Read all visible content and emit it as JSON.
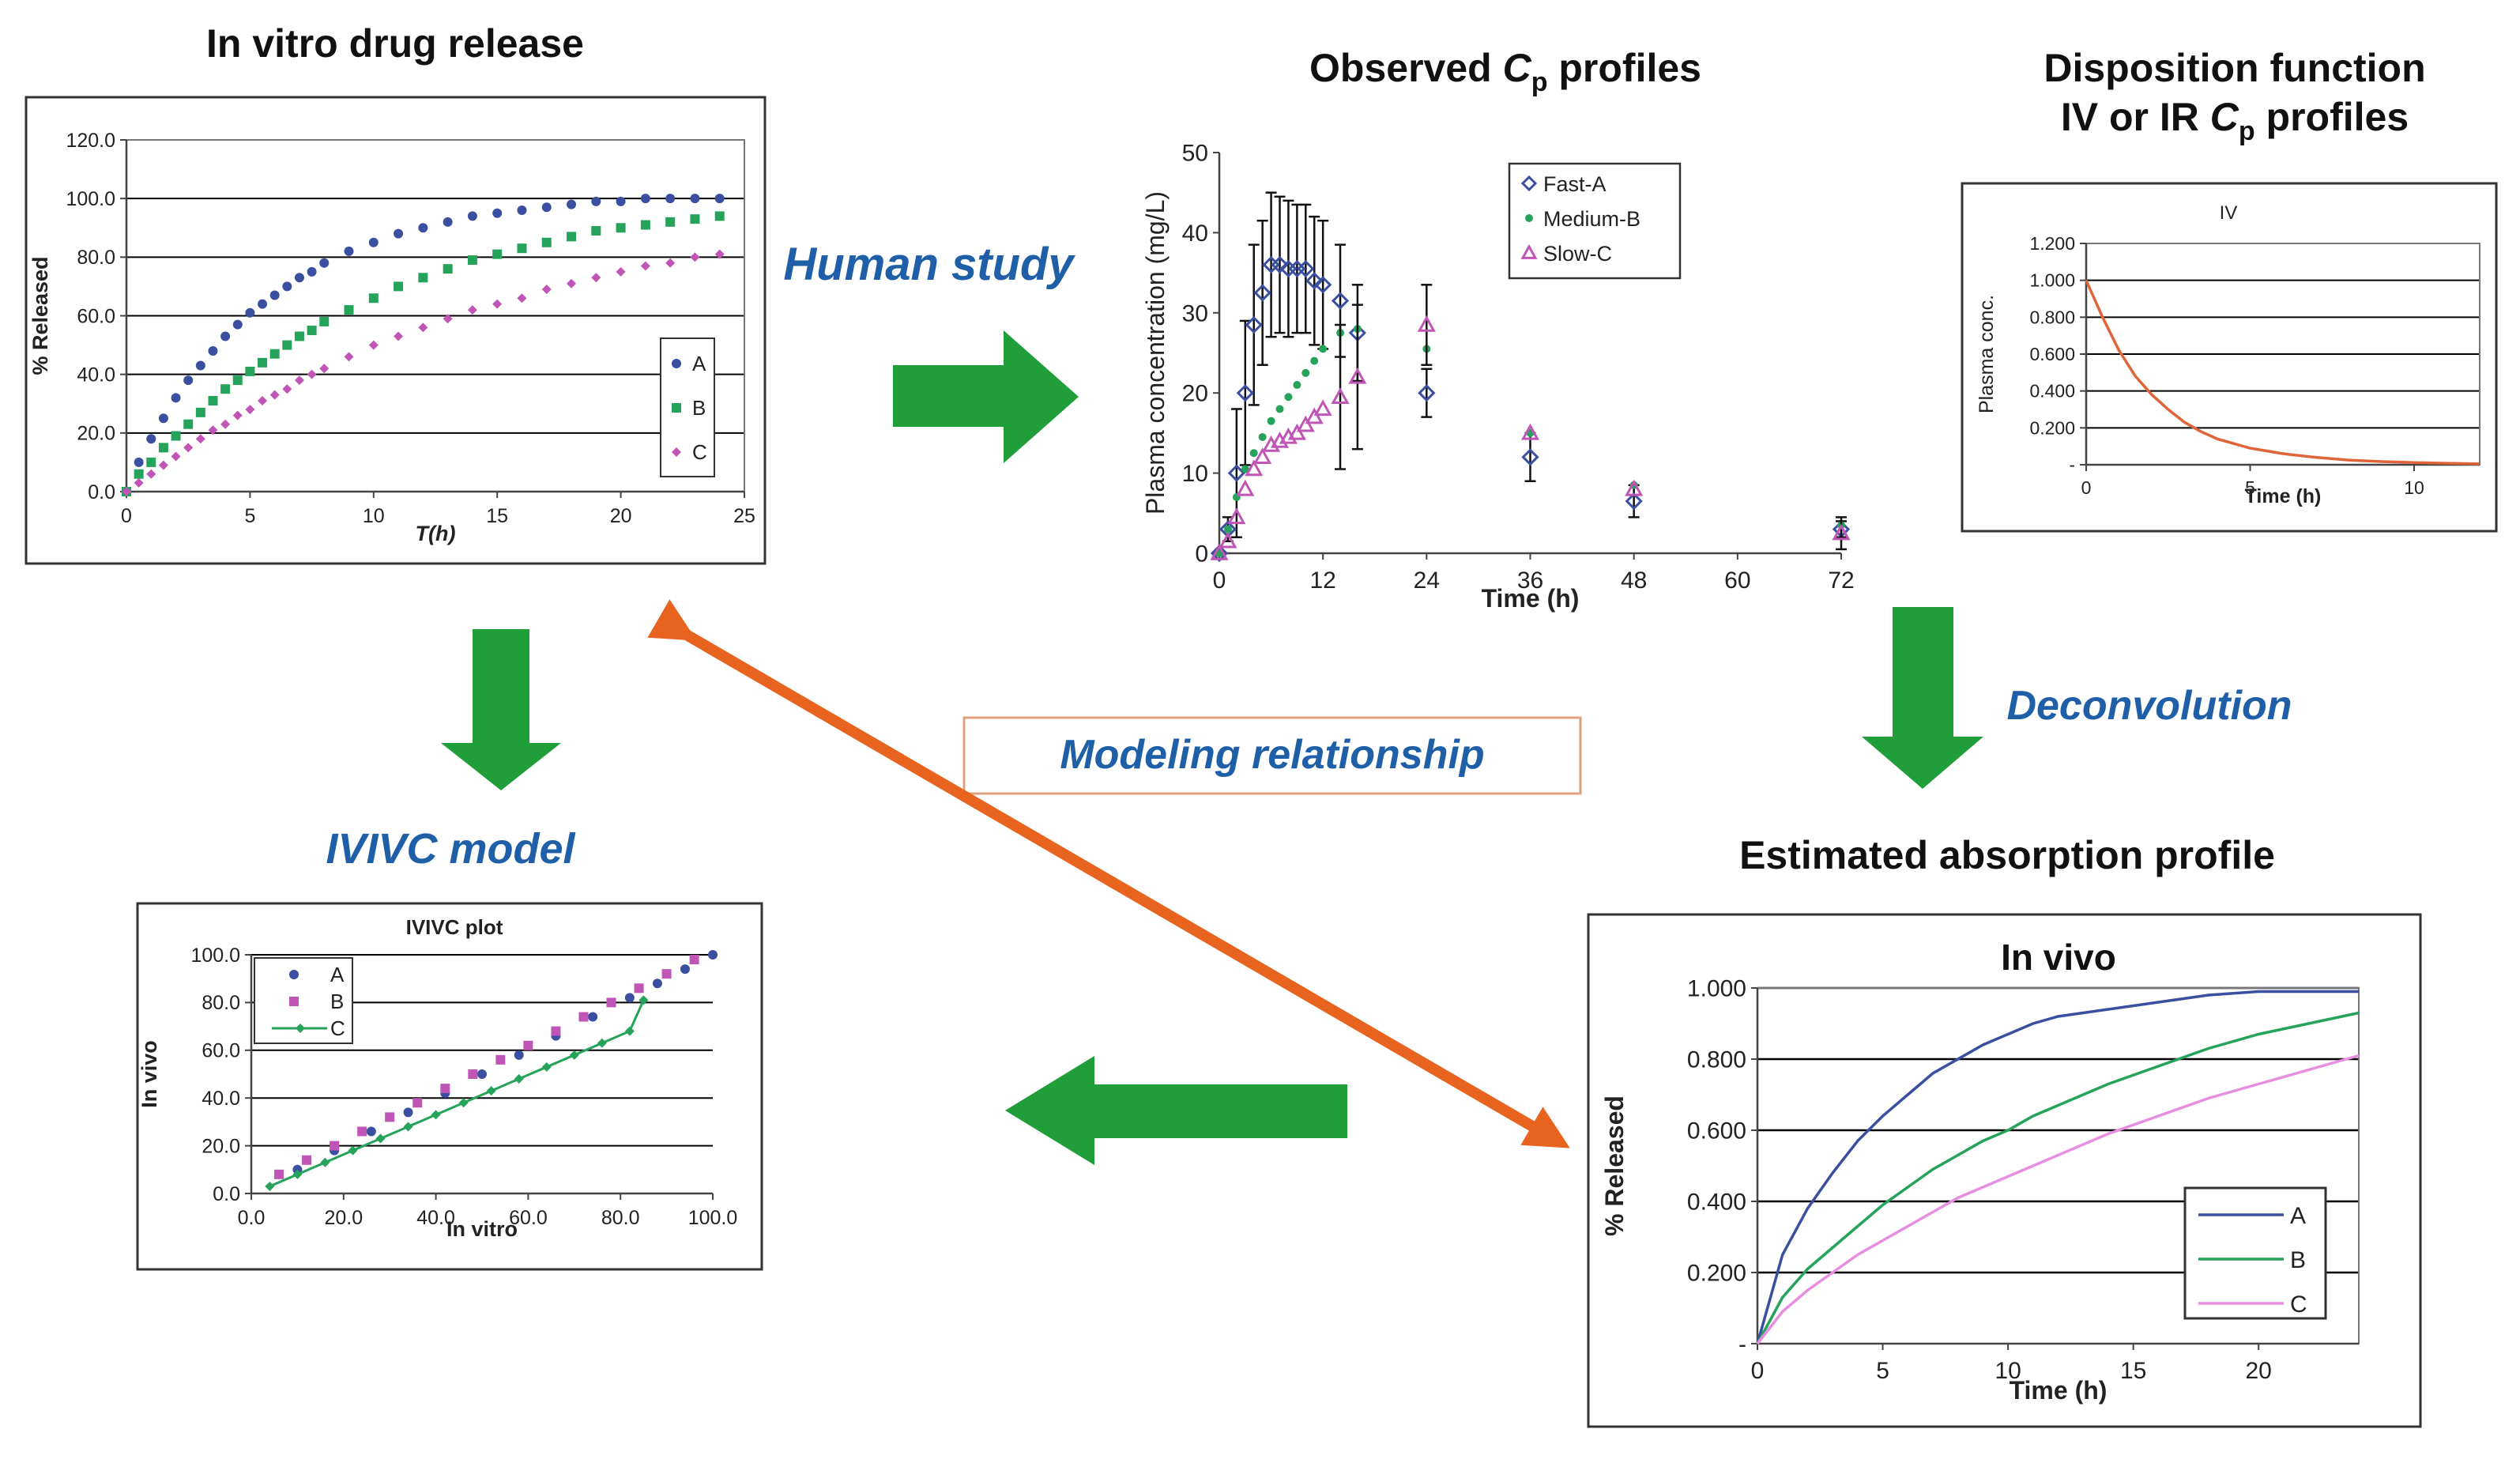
{
  "colors": {
    "seriesA": "#3a4fa0",
    "seriesB": "#25a35a",
    "seriesC": "#c055b5",
    "ivCurve": "#e0643a",
    "arrowGreen": "#1f9e3a",
    "arrowOrange": "#e8641e",
    "labelBlue": "#1e5fa8"
  },
  "labels": {
    "humanStudy": "Human study",
    "deconvolution": "Deconvolution",
    "modeling": "Modeling relationship",
    "ivivcModel": "IVIVC model"
  },
  "panels": {
    "invitro": {
      "title": "In vitro drug release"
    },
    "observed": {
      "title_pre": "Observed ",
      "title_c": "C",
      "title_sub": "p",
      "title_post": " profiles"
    },
    "disposition": {
      "title_line1": "Disposition function",
      "title_line2_pre": "IV or IR  ",
      "title_line2_c": "C",
      "title_line2_sub": "p",
      "title_line2_post": " profiles"
    },
    "absorption": {
      "title": "Estimated absorption profile"
    }
  },
  "chart_data": [
    {
      "id": "invitro",
      "type": "scatter",
      "title": "In vitro drug release",
      "xlabel": "T(h)",
      "ylabel": "% Released",
      "xlim": [
        0,
        25
      ],
      "ylim": [
        0,
        120
      ],
      "xticks": [
        0,
        5,
        10,
        15,
        20,
        25
      ],
      "xtick_labels": [
        "0",
        "5",
        "10",
        "15",
        "20",
        "25"
      ],
      "yticks": [
        0,
        20,
        40,
        60,
        80,
        100,
        120
      ],
      "ytick_labels": [
        "0.0",
        "20.0",
        "40.0",
        "60.0",
        "80.0",
        "100.0",
        "120.0"
      ],
      "legend": "right",
      "series": [
        {
          "name": "A",
          "color": "#3a4fa0",
          "x": [
            0,
            0.5,
            1,
            1.5,
            2,
            2.5,
            3,
            3.5,
            4,
            4.5,
            5,
            5.5,
            6,
            6.5,
            7,
            7.5,
            8,
            9,
            10,
            11,
            12,
            13,
            14,
            15,
            16,
            17,
            18,
            19,
            20,
            21,
            22,
            23,
            24
          ],
          "y": [
            0,
            10,
            18,
            25,
            32,
            38,
            43,
            48,
            53,
            57,
            61,
            64,
            67,
            70,
            73,
            75,
            78,
            82,
            85,
            88,
            90,
            92,
            94,
            95,
            96,
            97,
            98,
            99,
            99,
            100,
            100,
            100,
            100
          ]
        },
        {
          "name": "B",
          "color": "#25a35a",
          "x": [
            0,
            0.5,
            1,
            1.5,
            2,
            2.5,
            3,
            3.5,
            4,
            4.5,
            5,
            5.5,
            6,
            6.5,
            7,
            7.5,
            8,
            9,
            10,
            11,
            12,
            13,
            14,
            15,
            16,
            17,
            18,
            19,
            20,
            21,
            22,
            23,
            24
          ],
          "y": [
            0,
            6,
            10,
            15,
            19,
            23,
            27,
            31,
            35,
            38,
            41,
            44,
            47,
            50,
            53,
            55,
            58,
            62,
            66,
            70,
            73,
            76,
            79,
            81,
            83,
            85,
            87,
            89,
            90,
            91,
            92,
            93,
            94
          ]
        },
        {
          "name": "C",
          "color": "#c055b5",
          "x": [
            0,
            0.5,
            1,
            1.5,
            2,
            2.5,
            3,
            3.5,
            4,
            4.5,
            5,
            5.5,
            6,
            6.5,
            7,
            7.5,
            8,
            9,
            10,
            11,
            12,
            13,
            14,
            15,
            16,
            17,
            18,
            19,
            20,
            21,
            22,
            23,
            24
          ],
          "y": [
            0,
            3,
            6,
            9,
            12,
            15,
            18,
            21,
            23,
            26,
            28,
            31,
            33,
            35,
            38,
            40,
            42,
            46,
            50,
            53,
            56,
            59,
            62,
            64,
            66,
            69,
            71,
            73,
            75,
            77,
            78,
            80,
            81
          ]
        }
      ]
    },
    {
      "id": "observed",
      "type": "scatter",
      "xlabel": "Time (h)",
      "ylabel": "Plasma concentration (mg/L)",
      "xlim": [
        0,
        72
      ],
      "ylim": [
        0,
        50
      ],
      "xticks": [
        0,
        12,
        24,
        36,
        48,
        60,
        72
      ],
      "xtick_labels": [
        "0",
        "12",
        "24",
        "36",
        "48",
        "60",
        "72"
      ],
      "yticks": [
        0,
        10,
        20,
        30,
        40,
        50
      ],
      "ytick_labels": [
        "0",
        "10",
        "20",
        "30",
        "40",
        "50"
      ],
      "legend": "top-right",
      "series": [
        {
          "name": "Fast-A",
          "marker": "diamond",
          "color": "#3a4fa0",
          "x": [
            0,
            1,
            2,
            3,
            4,
            5,
            6,
            7,
            8,
            9,
            10,
            11,
            12,
            14,
            16,
            24,
            36,
            48,
            72
          ],
          "y": [
            0,
            3,
            10,
            20,
            28.5,
            32.5,
            36,
            36,
            35.5,
            35.5,
            35.5,
            34,
            33.5,
            31.5,
            27.5,
            20,
            12,
            6.5,
            3
          ],
          "err": [
            0,
            1.5,
            8,
            9,
            10,
            9,
            9,
            8.5,
            8.5,
            8,
            8,
            8,
            8,
            7,
            6,
            3,
            3,
            2,
            1
          ]
        },
        {
          "name": "Medium-B",
          "marker": "dot",
          "color": "#25a35a",
          "x": [
            0,
            1,
            2,
            3,
            4,
            5,
            6,
            7,
            8,
            9,
            10,
            11,
            12,
            14,
            16,
            24,
            36,
            48,
            72
          ],
          "y": [
            0,
            3,
            7,
            10.5,
            12.5,
            14.5,
            16.5,
            18,
            19.5,
            21,
            22.5,
            24,
            25.5,
            27.5,
            28,
            25.5,
            15,
            8.5,
            3.5
          ],
          "err": []
        },
        {
          "name": "Slow-C",
          "marker": "triangle",
          "color": "#c055b5",
          "x": [
            0,
            1,
            2,
            3,
            4,
            5,
            6,
            7,
            8,
            9,
            10,
            11,
            12,
            14,
            16,
            24,
            36,
            48,
            72
          ],
          "y": [
            0,
            1.5,
            4.5,
            8,
            10.5,
            12,
            13.5,
            14,
            14.5,
            15,
            16,
            17,
            18,
            19.5,
            22,
            28.5,
            15,
            8,
            2.5
          ],
          "err": [
            0,
            0,
            0,
            0,
            0,
            0,
            0,
            0,
            0,
            0,
            0,
            0,
            0,
            9,
            9,
            5,
            0,
            0,
            2
          ]
        }
      ]
    },
    {
      "id": "disposition",
      "type": "line",
      "title": "IV",
      "xlabel": "Time (h)",
      "ylabel": "Plasma conc.",
      "xlim": [
        0,
        12
      ],
      "ylim": [
        0,
        1.2
      ],
      "xticks": [
        0,
        5,
        10
      ],
      "xtick_labels": [
        "0",
        "5",
        "10"
      ],
      "yticks": [
        0,
        0.2,
        0.4,
        0.6,
        0.8,
        1.0,
        1.2
      ],
      "ytick_labels": [
        "-",
        "0.200",
        "0.400",
        "0.600",
        "0.800",
        "1.000",
        "1.200"
      ],
      "series": [
        {
          "name": "IV",
          "color": "#e0643a",
          "x": [
            0,
            0.5,
            1,
            1.5,
            2,
            2.5,
            3,
            3.5,
            4,
            5,
            6,
            7,
            8,
            9,
            10,
            11,
            12
          ],
          "y": [
            1.0,
            0.8,
            0.62,
            0.48,
            0.38,
            0.3,
            0.23,
            0.18,
            0.14,
            0.09,
            0.06,
            0.04,
            0.025,
            0.017,
            0.012,
            0.008,
            0.005
          ]
        }
      ]
    },
    {
      "id": "absorption",
      "type": "line",
      "title": "In vivo",
      "xlabel": "Time (h)",
      "ylabel": "% Released",
      "xlim": [
        0,
        24
      ],
      "ylim": [
        0,
        1.0
      ],
      "xticks": [
        0,
        5,
        10,
        15,
        20
      ],
      "xtick_labels": [
        "0",
        "5",
        "10",
        "15",
        "20"
      ],
      "yticks": [
        0,
        0.2,
        0.4,
        0.6,
        0.8,
        1.0
      ],
      "ytick_labels": [
        "-",
        "0.200",
        "0.400",
        "0.600",
        "0.800",
        "1.000"
      ],
      "legend": "bottom-right",
      "series": [
        {
          "name": "A",
          "color": "#3a4fa0",
          "x": [
            0,
            1,
            2,
            3,
            4,
            5,
            6,
            7,
            8,
            9,
            10,
            11,
            12,
            14,
            16,
            18,
            20,
            22,
            24
          ],
          "y": [
            0,
            0.25,
            0.38,
            0.48,
            0.57,
            0.64,
            0.7,
            0.76,
            0.8,
            0.84,
            0.87,
            0.9,
            0.92,
            0.94,
            0.96,
            0.98,
            0.99,
            0.99,
            0.99
          ]
        },
        {
          "name": "B",
          "color": "#25a35a",
          "x": [
            0,
            1,
            2,
            3,
            4,
            5,
            6,
            7,
            8,
            9,
            10,
            11,
            12,
            14,
            16,
            18,
            20,
            22,
            24
          ],
          "y": [
            0,
            0.13,
            0.21,
            0.27,
            0.33,
            0.39,
            0.44,
            0.49,
            0.53,
            0.57,
            0.6,
            0.64,
            0.67,
            0.73,
            0.78,
            0.83,
            0.87,
            0.9,
            0.93
          ]
        },
        {
          "name": "C",
          "color": "#e88ee0",
          "x": [
            0,
            1,
            2,
            3,
            4,
            5,
            6,
            7,
            8,
            9,
            10,
            11,
            12,
            14,
            16,
            18,
            20,
            22,
            24
          ],
          "y": [
            0,
            0.09,
            0.15,
            0.2,
            0.25,
            0.29,
            0.33,
            0.37,
            0.41,
            0.44,
            0.47,
            0.5,
            0.53,
            0.59,
            0.64,
            0.69,
            0.73,
            0.77,
            0.81
          ]
        }
      ]
    },
    {
      "id": "ivivc",
      "type": "scatter",
      "title": "IVIVC plot",
      "xlabel": "In vitro",
      "ylabel": "In vivo",
      "xlim": [
        0,
        100
      ],
      "ylim": [
        0,
        100
      ],
      "xticks": [
        0,
        20,
        40,
        60,
        80,
        100
      ],
      "xtick_labels": [
        "0.0",
        "20.0",
        "40.0",
        "60.0",
        "80.0",
        "100.0"
      ],
      "yticks": [
        0,
        20,
        40,
        60,
        80,
        100
      ],
      "ytick_labels": [
        "0.0",
        "20.0",
        "40.0",
        "60.0",
        "80.0",
        "100.0"
      ],
      "legend": "top-left",
      "series": [
        {
          "name": "A",
          "color": "#3a4fa0",
          "marker": "dot",
          "x": [
            10,
            18,
            26,
            34,
            42,
            50,
            58,
            66,
            74,
            82,
            88,
            94,
            100
          ],
          "y": [
            10,
            18,
            26,
            34,
            42,
            50,
            58,
            66,
            74,
            82,
            88,
            94,
            100
          ]
        },
        {
          "name": "B",
          "color": "#c055b5",
          "marker": "square",
          "x": [
            6,
            12,
            18,
            24,
            30,
            36,
            42,
            48,
            54,
            60,
            66,
            72,
            78,
            84,
            90,
            96
          ],
          "y": [
            8,
            14,
            20,
            26,
            32,
            38,
            44,
            50,
            56,
            62,
            68,
            74,
            80,
            86,
            92,
            98
          ]
        },
        {
          "name": "C",
          "color": "#25a35a",
          "marker": "diamond-line",
          "x": [
            4,
            10,
            16,
            22,
            28,
            34,
            40,
            46,
            52,
            58,
            64,
            70,
            76,
            82,
            85
          ],
          "y": [
            3,
            8,
            13,
            18,
            23,
            28,
            33,
            38,
            43,
            48,
            53,
            58,
            63,
            68,
            81
          ]
        }
      ]
    }
  ]
}
